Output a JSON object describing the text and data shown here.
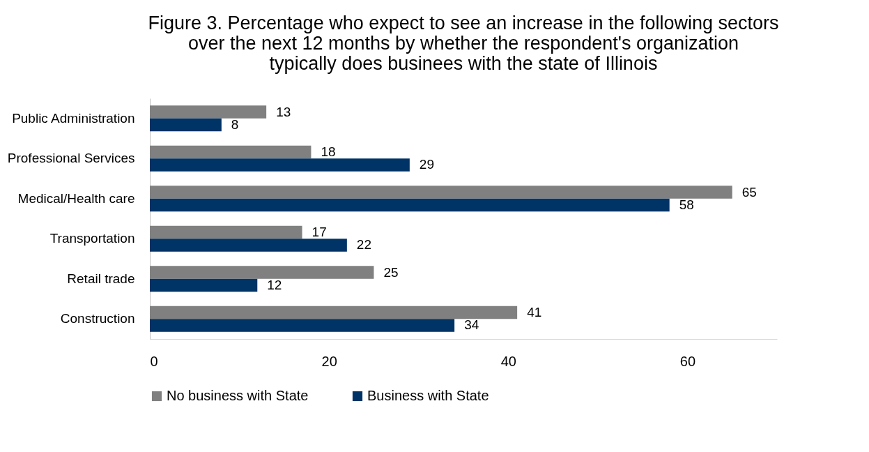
{
  "chart_data": {
    "type": "bar",
    "orientation": "horizontal",
    "title": "Figure 3. Percentage who expect to see an increase in the following sectors\nover the next 12 months by whether the respondent's organization\ntypically does businees with the state of Illinois",
    "categories": [
      "Public Administration",
      "Professional Services",
      "Medical/Health care",
      "Transportation",
      "Retail trade",
      "Construction"
    ],
    "series": [
      {
        "name": "No business with State",
        "color": "#808080",
        "values": [
          13,
          18,
          65,
          17,
          25,
          41
        ]
      },
      {
        "name": "Business with State",
        "color": "#003366",
        "values": [
          8,
          29,
          58,
          22,
          12,
          34
        ]
      }
    ],
    "xlim": [
      0,
      70
    ],
    "xticks": [
      0,
      20,
      40,
      60
    ],
    "grid": false,
    "legend": "bottom",
    "data_labels": true
  }
}
